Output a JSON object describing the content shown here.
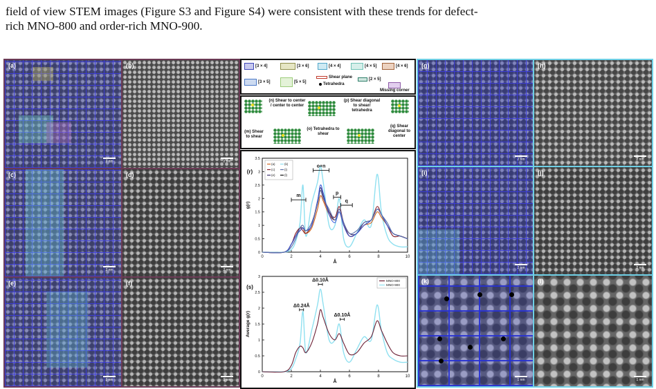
{
  "intro": {
    "line1": "field of view STEM images (Figure S3 and Figure S4) were consistent with these trends for defect-",
    "line2": "rich MNO-800 and order-rich MNO-900."
  },
  "panels": {
    "a": "(a)",
    "b": "(b)",
    "c": "(c)",
    "d": "(d)",
    "e": "(e)",
    "f": "(f)",
    "g": "(g)",
    "h": "(h)",
    "i": "(i)",
    "j": "(j)",
    "k": "(k)",
    "l": "(l)"
  },
  "scalebars": {
    "two_nm": "2 nm",
    "one_nm": "1 nm"
  },
  "legend": {
    "items": [
      {
        "label": "[3 × 4]",
        "color": "#3d47b8"
      },
      {
        "label": "[3 × 6]",
        "color": "#8f8f4c"
      },
      {
        "label": "[4 × 4]",
        "color": "#4fa6c9"
      },
      {
        "label": "[4 × 5]",
        "color": "#6fc2b5"
      },
      {
        "label": "[4 × 6]",
        "color": "#a0623a"
      },
      {
        "label": "[3 × 5]",
        "color": "#4a78c6"
      },
      {
        "label": "[5 × 5]",
        "color": "#9ccc7a"
      },
      {
        "label": "[2 × 5]",
        "color": "#2f7f6a"
      }
    ],
    "shear_plane": "Shear plane",
    "tetrahedra": "Tetrahedra",
    "missing_corner": "Missing corner"
  },
  "mechanisms": {
    "n": "(n) Shear to center / center to center",
    "p": "(p) Shear diagonal to shear/ tetrahedra",
    "m": "(m) Shear to shear",
    "o": "(o) Tetrahedra to shear",
    "q": "(q) Shear diagonal to center"
  },
  "chart_data": [
    {
      "type": "line",
      "panel": "(r)",
      "xlabel": "Å",
      "ylabel": "g(r)",
      "xlim": [
        0,
        10
      ],
      "ylim": [
        0,
        3.5
      ],
      "xticks": [
        "0",
        "2",
        "4",
        "6",
        "8",
        "10"
      ],
      "yticks": [
        "0",
        "0.5",
        "1",
        "1.5",
        "2",
        "2.5",
        "3",
        "3.5"
      ],
      "legend": [
        "(a)",
        "(c)",
        "(e)",
        "(g)",
        "(i)",
        "(k)"
      ],
      "legend_display": [
        "(a)",
        "(k)",
        "(c)",
        "(i)",
        "(e)",
        "(l)"
      ],
      "annotations": {
        "m": "m",
        "o_n": "o+n",
        "p": "p",
        "q": "q"
      },
      "x": [
        0,
        1.5,
        2.0,
        2.3,
        2.6,
        2.8,
        3.0,
        3.4,
        3.8,
        4.0,
        4.2,
        4.6,
        5.0,
        5.3,
        5.6,
        6.0,
        6.5,
        7.0,
        7.5,
        7.9,
        8.2,
        8.6,
        9.0,
        9.5,
        10
      ],
      "series": [
        {
          "name": "(a)",
          "color": "#d0661f",
          "values": [
            0,
            0,
            0.3,
            0.6,
            0.8,
            0.9,
            0.7,
            0.9,
            1.6,
            2.1,
            1.9,
            1.4,
            1.2,
            1.5,
            1.0,
            0.6,
            0.7,
            1.0,
            1.1,
            1.5,
            1.3,
            1.0,
            0.7,
            0.6,
            0.5
          ]
        },
        {
          "name": "(c)",
          "color": "#8a1f2a",
          "values": [
            0,
            0,
            0.3,
            0.7,
            0.9,
            0.8,
            0.7,
            1.0,
            1.8,
            2.3,
            2.0,
            1.5,
            1.3,
            1.7,
            1.1,
            0.6,
            0.7,
            1.0,
            1.2,
            1.7,
            1.4,
            1.0,
            0.6,
            0.6,
            0.5
          ]
        },
        {
          "name": "(e)",
          "color": "#3a2f6e",
          "values": [
            0,
            0,
            0.3,
            0.6,
            0.9,
            0.9,
            0.8,
            1.0,
            1.9,
            2.4,
            2.1,
            1.5,
            1.2,
            1.6,
            1.1,
            0.7,
            0.7,
            1.1,
            1.2,
            1.6,
            1.4,
            1.0,
            0.7,
            0.6,
            0.5
          ]
        },
        {
          "name": "(g)",
          "color": "#3b5bd6",
          "values": [
            0,
            0,
            0.3,
            0.6,
            0.8,
            0.9,
            0.8,
            1.0,
            1.9,
            2.5,
            2.2,
            1.4,
            1.1,
            1.5,
            1.0,
            0.6,
            0.7,
            1.0,
            1.2,
            1.6,
            1.4,
            1.0,
            0.7,
            0.6,
            0.5
          ]
        },
        {
          "name": "(i)",
          "color": "#5b6fa8",
          "values": [
            0,
            0,
            0.2,
            0.5,
            0.9,
            1.0,
            0.8,
            1.1,
            1.8,
            2.3,
            2.0,
            1.6,
            1.2,
            1.6,
            1.1,
            0.7,
            0.8,
            1.1,
            1.2,
            1.6,
            1.4,
            1.1,
            0.7,
            0.6,
            0.5
          ]
        },
        {
          "name": "(k)",
          "color": "#8fe0f0",
          "values": [
            0,
            0,
            0.1,
            0.4,
            1.1,
            2.5,
            0.6,
            1.8,
            2.6,
            3.2,
            2.6,
            1.0,
            1.0,
            2.0,
            0.5,
            0.2,
            0.7,
            1.2,
            1.0,
            2.9,
            1.5,
            0.6,
            0.3,
            0.2,
            0.2
          ]
        }
      ]
    },
    {
      "type": "line",
      "panel": "(s)",
      "xlabel": "Å",
      "ylabel": "Average g(r)",
      "xlim": [
        0,
        10
      ],
      "ylim": [
        0,
        3
      ],
      "xticks": [
        "0",
        "2",
        "4",
        "6",
        "8",
        "10"
      ],
      "yticks": [
        "0",
        "0.5",
        "1",
        "1.5",
        "2",
        "2.5",
        "3"
      ],
      "annotations": {
        "d1": "Δ0.10Å",
        "d2": "Δ0.24Å",
        "d3": "Δ0.10Å"
      },
      "x": [
        0,
        1.5,
        2.0,
        2.3,
        2.6,
        2.8,
        3.0,
        3.4,
        3.8,
        4.0,
        4.2,
        4.6,
        5.0,
        5.3,
        5.6,
        6.0,
        6.5,
        7.0,
        7.5,
        7.9,
        8.2,
        8.6,
        9.0,
        9.5,
        10
      ],
      "series": [
        {
          "name": "MNO-800",
          "color": "#6b1f35",
          "values": [
            0,
            0,
            0.2,
            0.6,
            0.8,
            0.75,
            0.6,
            0.9,
            1.5,
            1.95,
            1.7,
            1.2,
            1.0,
            1.2,
            0.9,
            0.55,
            0.6,
            0.9,
            1.1,
            1.6,
            1.3,
            0.9,
            0.6,
            0.5,
            0.5
          ]
        },
        {
          "name": "MNO-900",
          "color": "#8fe0f0",
          "values": [
            0,
            0,
            0.1,
            0.4,
            0.9,
            1.9,
            0.6,
            1.3,
            2.1,
            2.6,
            2.1,
            1.0,
            1.0,
            1.5,
            0.6,
            0.3,
            0.7,
            1.1,
            1.0,
            2.1,
            1.3,
            0.6,
            0.4,
            0.3,
            0.3
          ]
        }
      ]
    }
  ]
}
